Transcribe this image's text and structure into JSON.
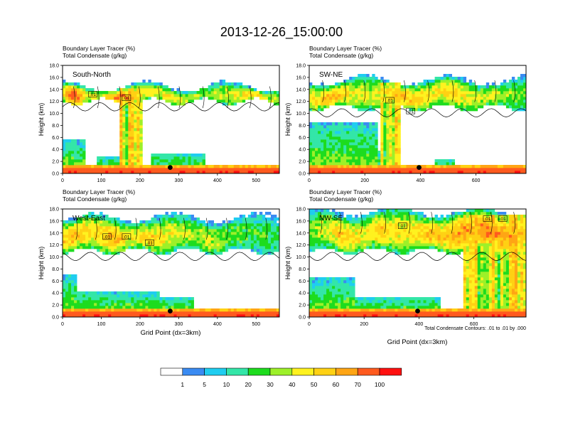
{
  "title": "2013-12-26_15:00:00",
  "chart_data": [
    {
      "type": "heatmap",
      "name": "South-North",
      "title_line1": "Boundary Layer Tracer    (%)",
      "title_line2": "Total Condensate    (g/kg)",
      "panel_label": "South-North",
      "ylabel": "Height (km)",
      "xlabel": "",
      "xlim": [
        0,
        560
      ],
      "ylim": [
        0,
        18
      ],
      "xticks": [
        0,
        100,
        200,
        300,
        400,
        500
      ],
      "yticks": [
        "0.0",
        "2.0",
        "4.0",
        "6.0",
        "8.0",
        "10.0",
        "12.0",
        "14.0",
        "16.0",
        "18.0"
      ],
      "contour_labels": [
        {
          "text": ".01",
          "x": 78,
          "y": 13.2
        },
        {
          "text": ".01",
          "x": 165,
          "y": 12.6
        }
      ],
      "marker": {
        "x": 278,
        "y": 1.0
      },
      "anvil": [
        12,
        14,
        [
          50,
          80,
          55,
          40,
          45,
          70,
          65,
          55,
          45,
          40,
          50,
          45,
          40,
          35,
          30,
          35,
          40,
          45,
          50,
          55,
          35,
          40
        ]
      ],
      "low": [
        [
          0,
          60,
          5.5
        ],
        [
          90,
          200,
          3.0
        ],
        [
          230,
          370,
          3.5
        ]
      ],
      "column": [
        150,
        205
      ]
    },
    {
      "type": "heatmap",
      "name": "SW-NE",
      "title_line1": "Boundary Layer Tracer    (%)",
      "title_line2": "Total Condensate    (g/kg)",
      "panel_label": "SW-NE",
      "ylabel": "Height (km)",
      "xlabel": "",
      "xlim": [
        0,
        780
      ],
      "ylim": [
        0,
        18
      ],
      "xticks": [
        0,
        200,
        400,
        600
      ],
      "yticks": [
        "0.0",
        "2.0",
        "4.0",
        "6.0",
        "8.0",
        "10.0",
        "12.0",
        "14.0",
        "16.0",
        "18.0"
      ],
      "contour_labels": [
        {
          "text": ".01",
          "x": 290,
          "y": 12.2
        },
        {
          "text": ".01",
          "x": 365,
          "y": 10.4
        }
      ],
      "marker": {
        "x": 395,
        "y": 1.0
      },
      "anvil": [
        11,
        15,
        [
          45,
          50,
          60,
          55,
          45,
          40,
          40,
          45,
          55,
          60,
          55,
          50,
          45,
          50,
          55,
          45,
          40,
          40,
          45,
          35,
          30,
          30
        ]
      ],
      "low": [
        [
          0,
          250,
          8.5
        ],
        [
          250,
          330,
          4.0
        ],
        [
          450,
          520,
          2.5
        ]
      ],
      "column": [
        260,
        330
      ]
    },
    {
      "type": "heatmap",
      "name": "West-East",
      "title_line1": "Boundary Layer Tracer    (%)",
      "title_line2": "Total Condensate    (g/kg)",
      "panel_label": "West-East",
      "ylabel": "Height (km)",
      "xlabel": "Grid Point (dx=3km)",
      "xlim": [
        0,
        560
      ],
      "ylim": [
        0,
        18
      ],
      "xticks": [
        0,
        100,
        200,
        300,
        400,
        500
      ],
      "yticks": [
        "0.0",
        "2.0",
        "4.0",
        "6.0",
        "8.0",
        "10.0",
        "12.0",
        "14.0",
        "16.0",
        "18.0"
      ],
      "contour_labels": [
        {
          "text": ".01",
          "x": 115,
          "y": 13.4
        },
        {
          "text": ".01",
          "x": 165,
          "y": 13.4
        },
        {
          "text": ".01",
          "x": 225,
          "y": 12.4
        }
      ],
      "marker": {
        "x": 278,
        "y": 1.0
      },
      "anvil": [
        11,
        16,
        [
          55,
          60,
          55,
          50,
          55,
          60,
          50,
          45,
          55,
          50,
          45,
          40,
          40,
          35,
          40,
          35,
          30,
          30,
          25,
          25,
          25,
          20
        ]
      ],
      "low": [
        [
          0,
          40,
          7.0
        ],
        [
          40,
          250,
          4.5
        ],
        [
          250,
          340,
          3.5
        ]
      ],
      "column": [
        0,
        0
      ]
    },
    {
      "type": "heatmap",
      "name": "NW-SE",
      "title_line1": "Boundary Layer Tracer    (%)",
      "title_line2": "Total Condensate    (g/kg)",
      "panel_label": "NW-SE",
      "ylabel": "Height (km)",
      "xlabel": "Grid Point (dx=3km)",
      "footnote": "Total Condensate Contours: .01 to .01 by .000",
      "xlim": [
        0,
        790
      ],
      "ylim": [
        0,
        18
      ],
      "xticks": [
        0,
        200,
        400,
        600
      ],
      "yticks": [
        "0.0",
        "2.0",
        "4.0",
        "6.0",
        "8.0",
        "10.0",
        "12.0",
        "14.0",
        "16.0",
        "18.0"
      ],
      "contour_labels": [
        {
          "text": ".01",
          "x": 340,
          "y": 15.2
        },
        {
          "text": ".01",
          "x": 650,
          "y": 16.4
        },
        {
          "text": ".01",
          "x": 705,
          "y": 16.4
        }
      ],
      "marker": {
        "x": 395,
        "y": 1.0
      },
      "anvil": [
        11,
        17,
        [
          30,
          35,
          45,
          55,
          50,
          45,
          50,
          55,
          50,
          45,
          50,
          55,
          60,
          55,
          60,
          65,
          60,
          70,
          65,
          70,
          60,
          55
        ]
      ],
      "low": [
        [
          0,
          170,
          6.5
        ],
        [
          170,
          480,
          3.5
        ]
      ],
      "column": [
        560,
        790
      ]
    }
  ],
  "colorbar": {
    "labels": [
      "1",
      "5",
      "10",
      "20",
      "30",
      "40",
      "50",
      "60",
      "70",
      "100"
    ],
    "colors": [
      "#ffffff",
      "#3a8bf2",
      "#1fcdf0",
      "#33e6a8",
      "#1ddc1e",
      "#9df029",
      "#fff21f",
      "#ffd113",
      "#ffa514",
      "#ff5a1e",
      "#ff1010"
    ]
  }
}
